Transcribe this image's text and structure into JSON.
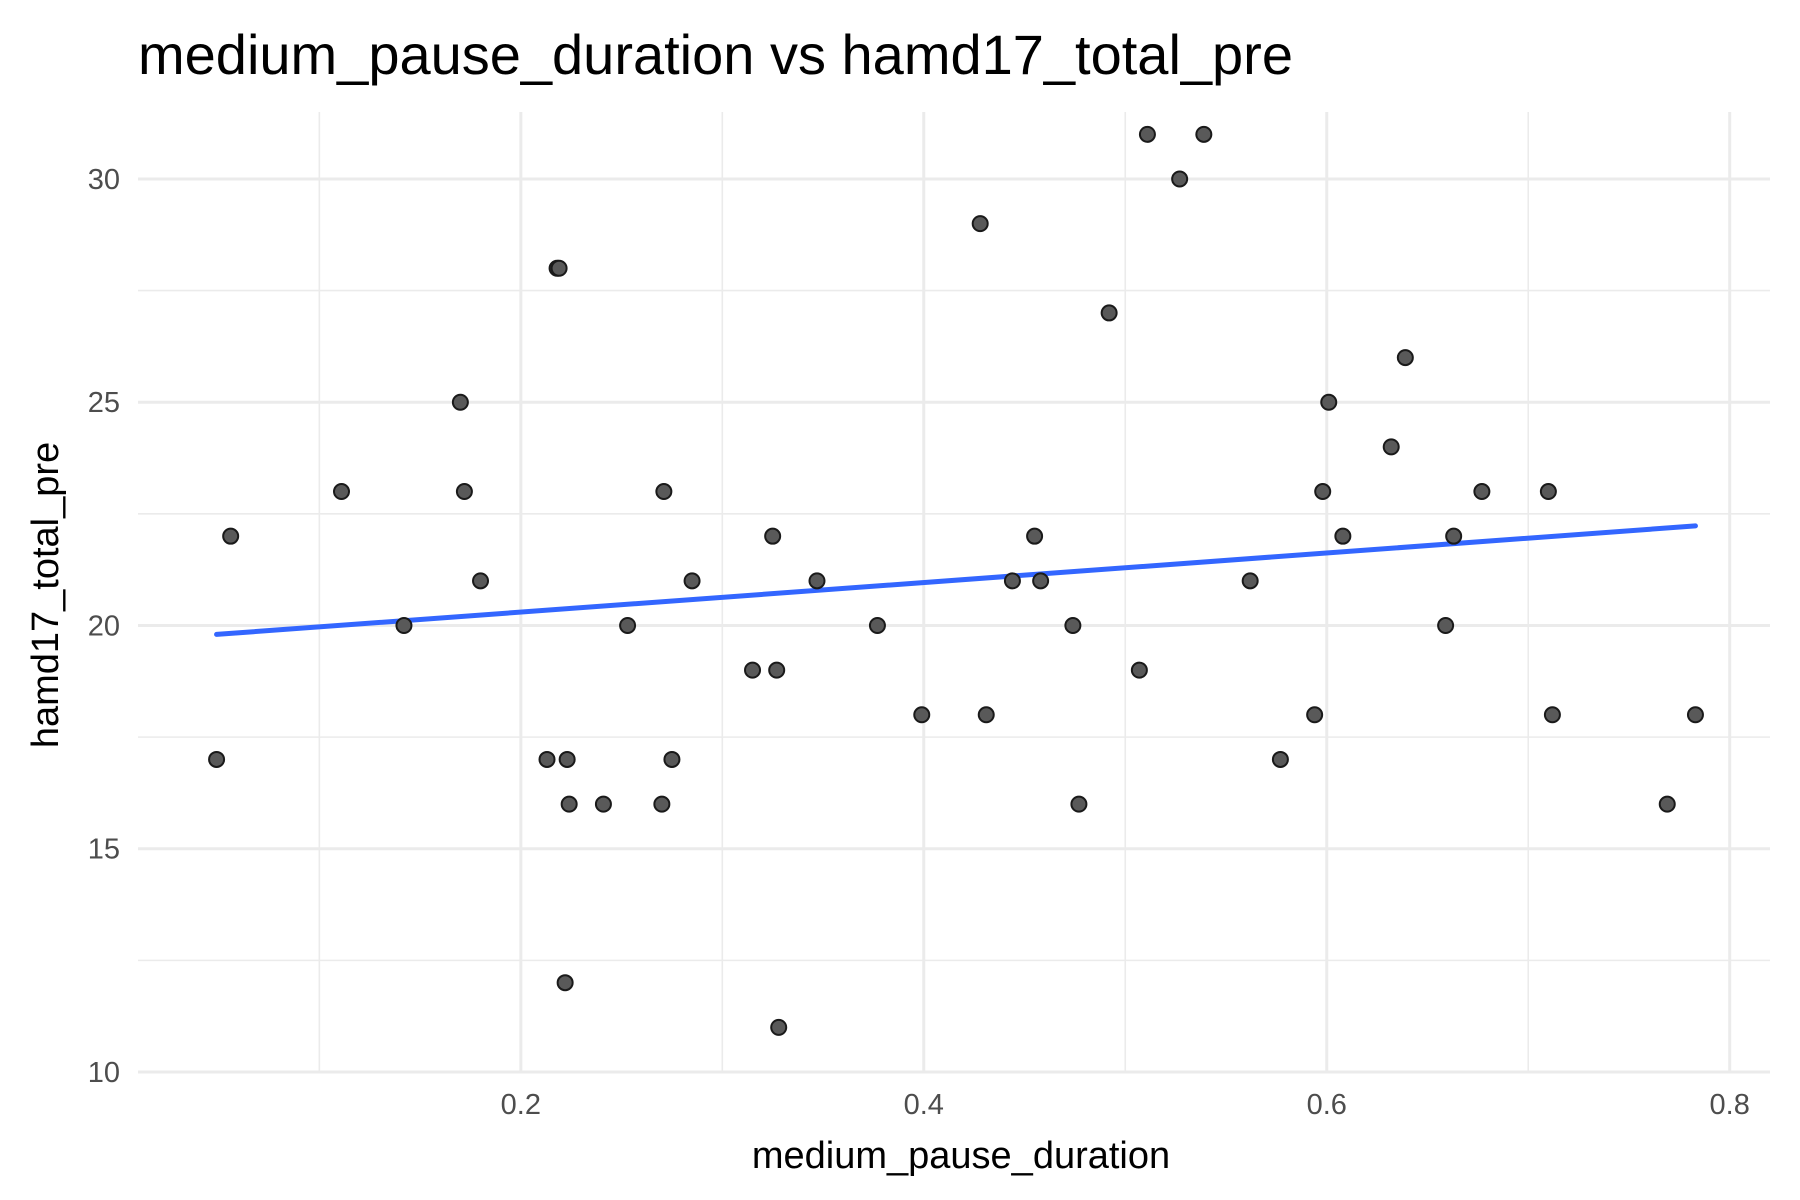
{
  "chart_data": {
    "type": "scatter",
    "title": "medium_pause_duration vs hamd17_total_pre",
    "xlabel": "medium_pause_duration",
    "ylabel": "hamd17_total_pre",
    "xlim": [
      0.01,
      0.82
    ],
    "ylim": [
      10,
      31.5
    ],
    "x_ticks": [
      0.2,
      0.4,
      0.6,
      0.8
    ],
    "y_ticks": [
      10,
      15,
      20,
      25,
      30
    ],
    "x_tick_labels": [
      "0.2",
      "0.4",
      "0.6",
      "0.8"
    ],
    "y_tick_labels": [
      "10",
      "15",
      "20",
      "25",
      "30"
    ],
    "grid": true,
    "points": [
      {
        "x": 0.049,
        "y": 17
      },
      {
        "x": 0.056,
        "y": 22
      },
      {
        "x": 0.111,
        "y": 23
      },
      {
        "x": 0.142,
        "y": 20
      },
      {
        "x": 0.17,
        "y": 25
      },
      {
        "x": 0.172,
        "y": 23
      },
      {
        "x": 0.18,
        "y": 21
      },
      {
        "x": 0.213,
        "y": 17
      },
      {
        "x": 0.218,
        "y": 28
      },
      {
        "x": 0.219,
        "y": 28
      },
      {
        "x": 0.222,
        "y": 12
      },
      {
        "x": 0.223,
        "y": 17
      },
      {
        "x": 0.224,
        "y": 16
      },
      {
        "x": 0.241,
        "y": 16
      },
      {
        "x": 0.253,
        "y": 20
      },
      {
        "x": 0.27,
        "y": 16
      },
      {
        "x": 0.271,
        "y": 23
      },
      {
        "x": 0.275,
        "y": 17
      },
      {
        "x": 0.285,
        "y": 21
      },
      {
        "x": 0.315,
        "y": 19
      },
      {
        "x": 0.325,
        "y": 22
      },
      {
        "x": 0.327,
        "y": 19
      },
      {
        "x": 0.328,
        "y": 11
      },
      {
        "x": 0.347,
        "y": 21
      },
      {
        "x": 0.377,
        "y": 20
      },
      {
        "x": 0.399,
        "y": 18
      },
      {
        "x": 0.428,
        "y": 29
      },
      {
        "x": 0.431,
        "y": 18
      },
      {
        "x": 0.444,
        "y": 21
      },
      {
        "x": 0.455,
        "y": 22
      },
      {
        "x": 0.458,
        "y": 21
      },
      {
        "x": 0.474,
        "y": 20
      },
      {
        "x": 0.477,
        "y": 16
      },
      {
        "x": 0.492,
        "y": 27
      },
      {
        "x": 0.507,
        "y": 19
      },
      {
        "x": 0.511,
        "y": 31
      },
      {
        "x": 0.527,
        "y": 30
      },
      {
        "x": 0.539,
        "y": 31
      },
      {
        "x": 0.562,
        "y": 21
      },
      {
        "x": 0.577,
        "y": 17
      },
      {
        "x": 0.594,
        "y": 18
      },
      {
        "x": 0.598,
        "y": 23
      },
      {
        "x": 0.601,
        "y": 25
      },
      {
        "x": 0.608,
        "y": 22
      },
      {
        "x": 0.632,
        "y": 24
      },
      {
        "x": 0.639,
        "y": 26
      },
      {
        "x": 0.659,
        "y": 20
      },
      {
        "x": 0.663,
        "y": 22
      },
      {
        "x": 0.677,
        "y": 23
      },
      {
        "x": 0.71,
        "y": 23
      },
      {
        "x": 0.712,
        "y": 18
      },
      {
        "x": 0.769,
        "y": 16
      },
      {
        "x": 0.783,
        "y": 18
      }
    ],
    "trend_line": {
      "method": "linear",
      "color": "#3366FF",
      "x": [
        0.049,
        0.783
      ],
      "y": [
        19.8,
        22.23
      ]
    },
    "point_color": "#595959"
  }
}
